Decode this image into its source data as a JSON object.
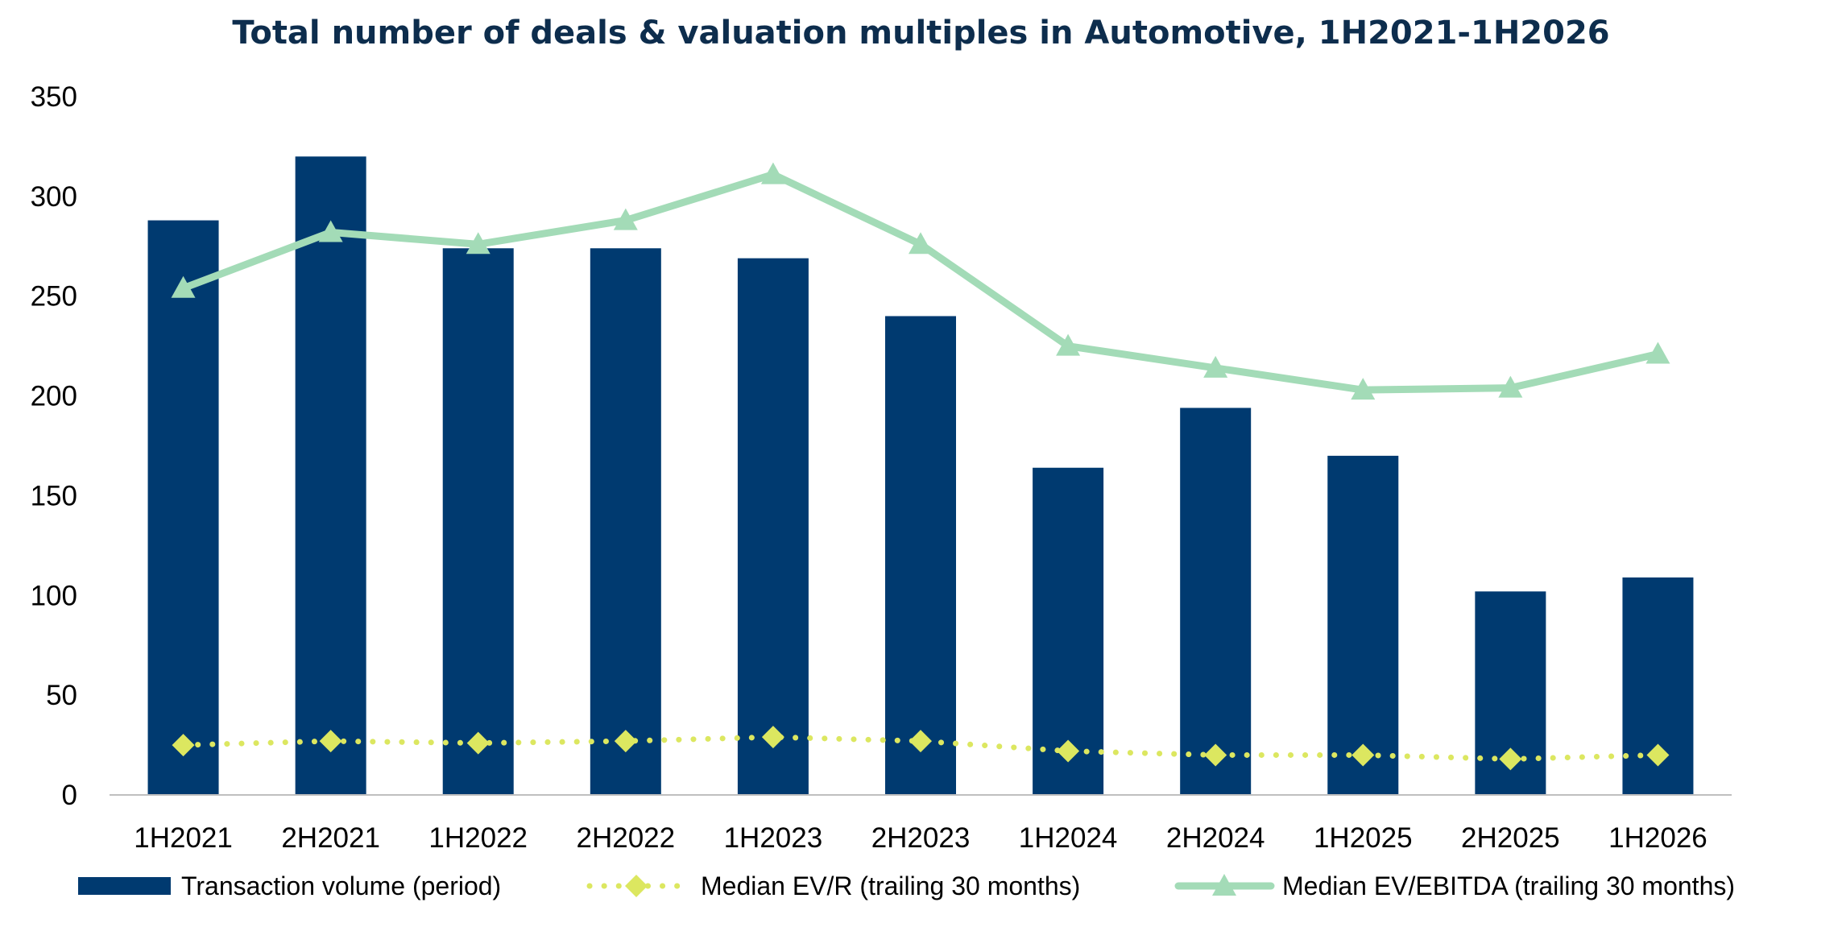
{
  "chart_data": {
    "type": "bar",
    "title": "Total number of deals & valuation multiples in Automotive, 1H2021-1H2026",
    "xlabel": "",
    "ylabel": "",
    "ylim": [
      0,
      350
    ],
    "y_ticks": [
      0,
      50,
      100,
      150,
      200,
      250,
      300,
      350
    ],
    "categories": [
      "1H2021",
      "2H2021",
      "1H2022",
      "2H2022",
      "1H2023",
      "2H2023",
      "1H2024",
      "2H2024",
      "1H2025",
      "2H2025",
      "1H2026"
    ],
    "grid": false,
    "legend_position": "bottom",
    "series": [
      {
        "name": "Transaction volume (period)",
        "type": "bar",
        "color": "#003a70",
        "values": [
          288,
          320,
          274,
          274,
          269,
          240,
          164,
          194,
          170,
          102,
          109
        ]
      },
      {
        "name": "Median EV/R (trailing 30 months)",
        "type": "line",
        "style": "dotted",
        "marker": "diamond",
        "color": "#dce760",
        "values": [
          25,
          27,
          26,
          27,
          29,
          27,
          22,
          20,
          20,
          18,
          20
        ]
      },
      {
        "name": "Median EV/EBITDA (trailing 30 months)",
        "type": "line",
        "style": "solid",
        "marker": "triangle",
        "color": "#a3dbb7",
        "values": [
          254,
          282,
          276,
          288,
          311,
          276,
          225,
          214,
          203,
          204,
          221
        ]
      }
    ]
  }
}
